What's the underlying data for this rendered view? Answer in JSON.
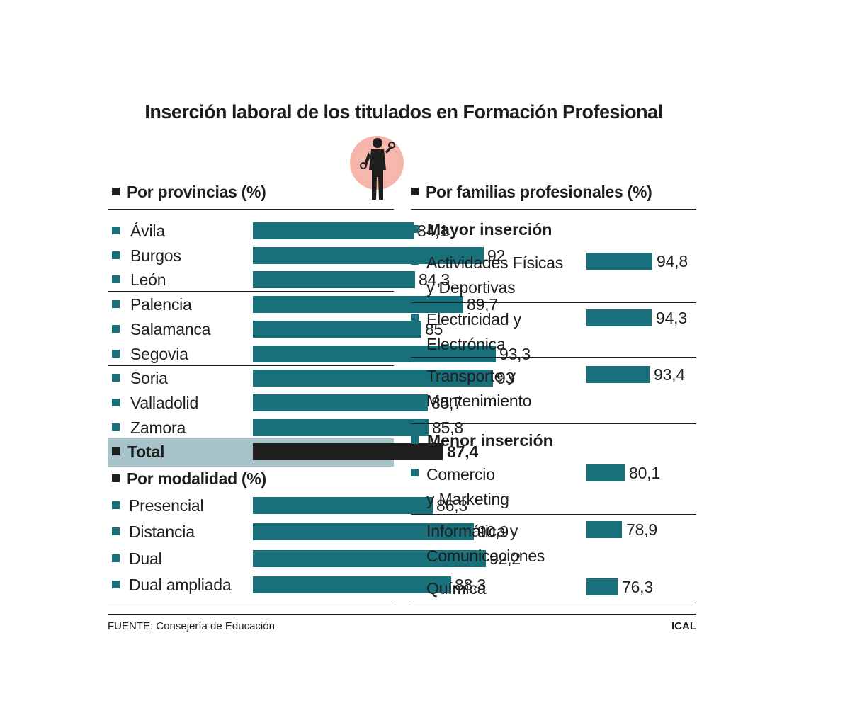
{
  "title": "Inserción laboral de los titulados en Formación Profesional",
  "colors": {
    "bar": "#17707a",
    "total_bar": "#1e1e1e",
    "total_band": "#a5c3c9",
    "icon_circle": "#f0a097"
  },
  "chart_data": [
    {
      "type": "bar",
      "title": "Por provincias (%)",
      "categories": [
        "Ávila",
        "Burgos",
        "León",
        "Palencia",
        "Salamanca",
        "Segovia",
        "Soria",
        "Valladolid",
        "Zamora"
      ],
      "values": [
        84.1,
        92,
        84.3,
        89.7,
        85,
        93.3,
        93,
        85.7,
        85.8
      ],
      "value_labels": [
        "84,1",
        "92",
        "84,3",
        "89,7",
        "85",
        "93,3",
        "93",
        "85,7",
        "85,8"
      ],
      "total": {
        "label": "Total",
        "value": 87.4,
        "value_label": "87,4"
      }
    },
    {
      "type": "bar",
      "title": "Por modalidad (%)",
      "categories": [
        "Presencial",
        "Distancia",
        "Dual",
        "Dual ampliada"
      ],
      "values": [
        86.3,
        90.9,
        92.2,
        88.3
      ],
      "value_labels": [
        "86,3",
        "90,9",
        "92,2",
        "88,3"
      ]
    },
    {
      "type": "bar",
      "title": "Por familias profesionales (%)",
      "groups": [
        {
          "name": "Mayor inserción",
          "categories": [
            [
              "Actividades Físicas",
              "y Deportivas"
            ],
            [
              "Electricidad y",
              "Electrónica"
            ],
            [
              "Transporte y",
              "Mantenimiento"
            ]
          ],
          "values": [
            94.8,
            94.3,
            93.4
          ],
          "value_labels": [
            "94,8",
            "94,3",
            "93,4"
          ]
        },
        {
          "name": "Menor inserción",
          "categories": [
            [
              "Comercio",
              "y Marketing"
            ],
            [
              "Informática y",
              "Comunicaciones"
            ],
            [
              "Química"
            ]
          ],
          "values": [
            80.1,
            78.9,
            76.3
          ],
          "value_labels": [
            "80,1",
            "78,9",
            "76,3"
          ]
        }
      ]
    }
  ],
  "footer": {
    "source": "FUENTE: Consejería de Educación",
    "brand": "ICAL"
  }
}
